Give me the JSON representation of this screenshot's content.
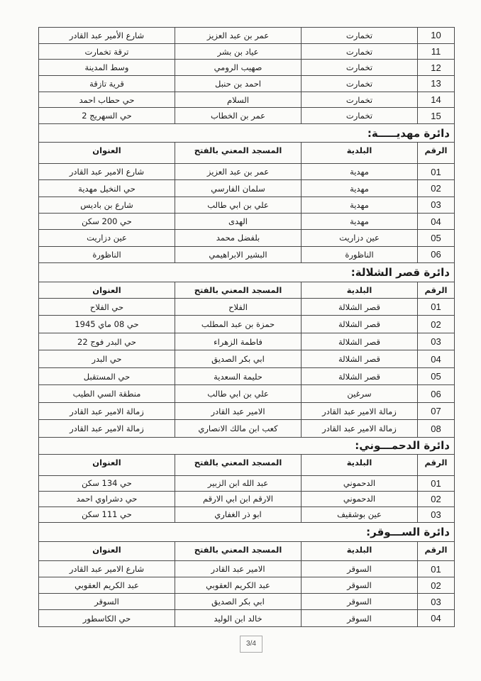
{
  "headers": {
    "num": "الرقم",
    "municipality": "البلدية",
    "mosque": "المسجد المعني بالفتح",
    "address": "العنوان"
  },
  "sections": [
    {
      "title": "",
      "show_header": false,
      "rows": [
        [
          "10",
          "تخمارت",
          "عمر بن عبد العزيز",
          "شارع الأمير عبد القادر"
        ],
        [
          "11",
          "تخمارت",
          "عياد بن بشر",
          "ترقة تخمارت"
        ],
        [
          "12",
          "تخمارت",
          "صهيب الرومي",
          "وسط المدينة"
        ],
        [
          "13",
          "تخمارت",
          "احمد بن حنبل",
          "قرية تازقة"
        ],
        [
          "14",
          "تخمارت",
          "السلام",
          "حي حطاب احمد"
        ],
        [
          "15",
          "تخمارت",
          "عمر بن الخطاب",
          "حي السهريج 2"
        ]
      ]
    },
    {
      "title": "دائرة مهديـــــة:",
      "show_header": true,
      "rows": [
        [
          "01",
          "مهدية",
          "عمر بن عبد العزيز",
          "شارع الامير عبد القادر"
        ],
        [
          "02",
          "مهدية",
          "سلمان الفارسي",
          "حي النخيل مهدية"
        ],
        [
          "03",
          "مهدية",
          "علي بن ابي طالب",
          "شارع بن باديس"
        ],
        [
          "04",
          "مهدية",
          "الهدى",
          "حي 200 سكن"
        ],
        [
          "05",
          "عين دزاريت",
          "بلفضل محمد",
          "عين دزاريت"
        ],
        [
          "06",
          "الناظورة",
          "البشير الابراهيمي",
          "الناظورة"
        ]
      ]
    },
    {
      "title": "دائرة قصر الشلالة:",
      "show_header": true,
      "rows": [
        [
          "01",
          "قصر الشلالة",
          "الفلاح",
          "حي الفلاح"
        ],
        [
          "02",
          "قصر الشلالة",
          "حمزة بن عبد المطلب",
          "حي 08 ماي 1945"
        ],
        [
          "03",
          "قصر الشلالة",
          "فاطمة الزهراء",
          "حي البدر فوج 22"
        ],
        [
          "04",
          "قصر الشلالة",
          "ابي بكر الصديق",
          "حي البدر"
        ],
        [
          "05",
          "قصر الشلالة",
          "حليمة السعدية",
          "حي المستقبل"
        ],
        [
          "06",
          "سرغين",
          "علي بن ابي طالب",
          "منطقة السي الطيب"
        ],
        [
          "07",
          "زمالة الامير عبد القادر",
          "الامير عبد القادر",
          "زمالة الامير عبد القادر"
        ],
        [
          "08",
          "زمالة الامير عبد القادر",
          "كعب ابن مالك الانصاري",
          "زمالة الامير عبد القادر"
        ]
      ]
    },
    {
      "title": "دائرة الدحمـــوني:",
      "show_header": true,
      "rows": [
        [
          "01",
          "الدحموني",
          "عبد الله ابن الزبير",
          "حي 134 سكن"
        ],
        [
          "02",
          "الدحموني",
          "الارقم ابن ابي الارقم",
          "حي دشراوي احمد"
        ],
        [
          "03",
          "عين بوشقيف",
          "ابو ذر الغفاري",
          "حي 111 سكن"
        ]
      ]
    },
    {
      "title": "دائرة الســـوقر:",
      "show_header": true,
      "rows": [
        [
          "01",
          "السوقر",
          "الامير عبد القادر",
          "شارع الامير عبد القادر"
        ],
        [
          "02",
          "السوقر",
          "عبد الكريم العقوبي",
          "عبد الكريم العقوبي"
        ],
        [
          "03",
          "السوقر",
          "ابي بكر الصديق",
          "السوقر"
        ],
        [
          "04",
          "السوقر",
          "خالد ابن الوليد",
          "حي الكاسطور"
        ]
      ]
    }
  ],
  "footer": {
    "page": "3/4"
  }
}
